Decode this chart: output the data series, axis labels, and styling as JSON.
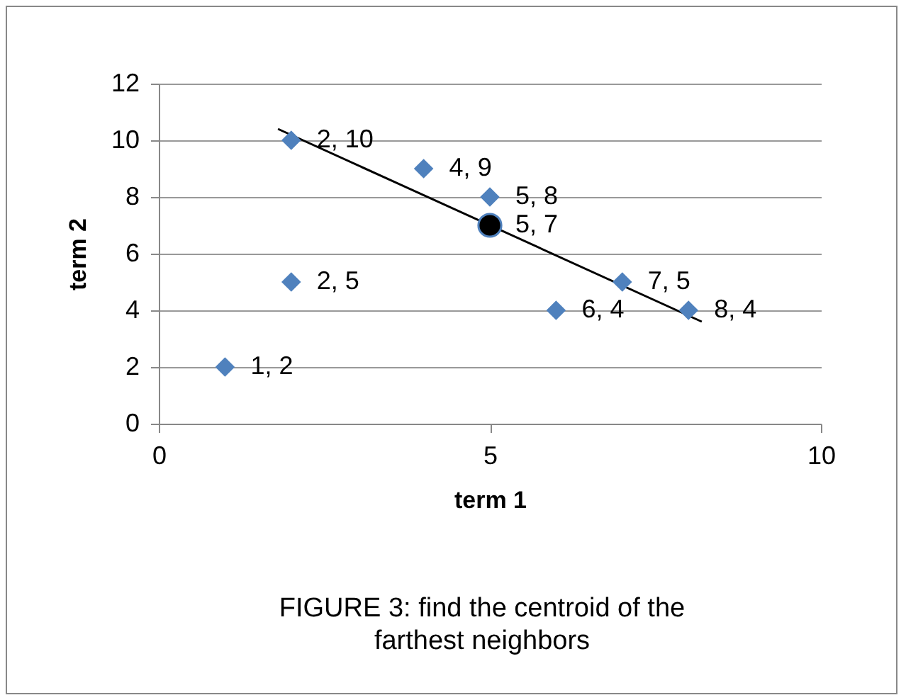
{
  "chart_data": {
    "type": "scatter",
    "xlabel": "term 1",
    "ylabel": "term 2",
    "annotations": [
      "FIGURE 3: find the centroid of the farthest neighbors"
    ],
    "xlim": [
      0,
      10
    ],
    "xticks": [
      0,
      5,
      10
    ],
    "ylim": [
      0,
      12
    ],
    "yticks": [
      0,
      2,
      4,
      6,
      8,
      10,
      12
    ],
    "grid": "y",
    "series": [
      {
        "type": "line",
        "marker": "none",
        "color": "#000000",
        "x": [
          1.8,
          8.2
        ],
        "values": [
          10.4,
          3.6
        ]
      },
      {
        "type": "scatter",
        "marker": "diamond",
        "color": "#4f81bd",
        "x": [
          1,
          2,
          2,
          4,
          5,
          6,
          7,
          8
        ],
        "values": [
          2,
          10,
          5,
          9,
          8,
          4,
          5,
          4
        ],
        "value_labels": [
          "1, 2",
          "2, 10",
          "2, 5",
          "4, 9",
          "5, 8",
          "6, 4",
          "7, 5",
          "8, 4"
        ]
      },
      {
        "type": "scatter",
        "marker": "circle",
        "color": "#000000",
        "x": [
          5
        ],
        "values": [
          7
        ],
        "value_labels": [
          "5, 7"
        ]
      }
    ]
  }
}
